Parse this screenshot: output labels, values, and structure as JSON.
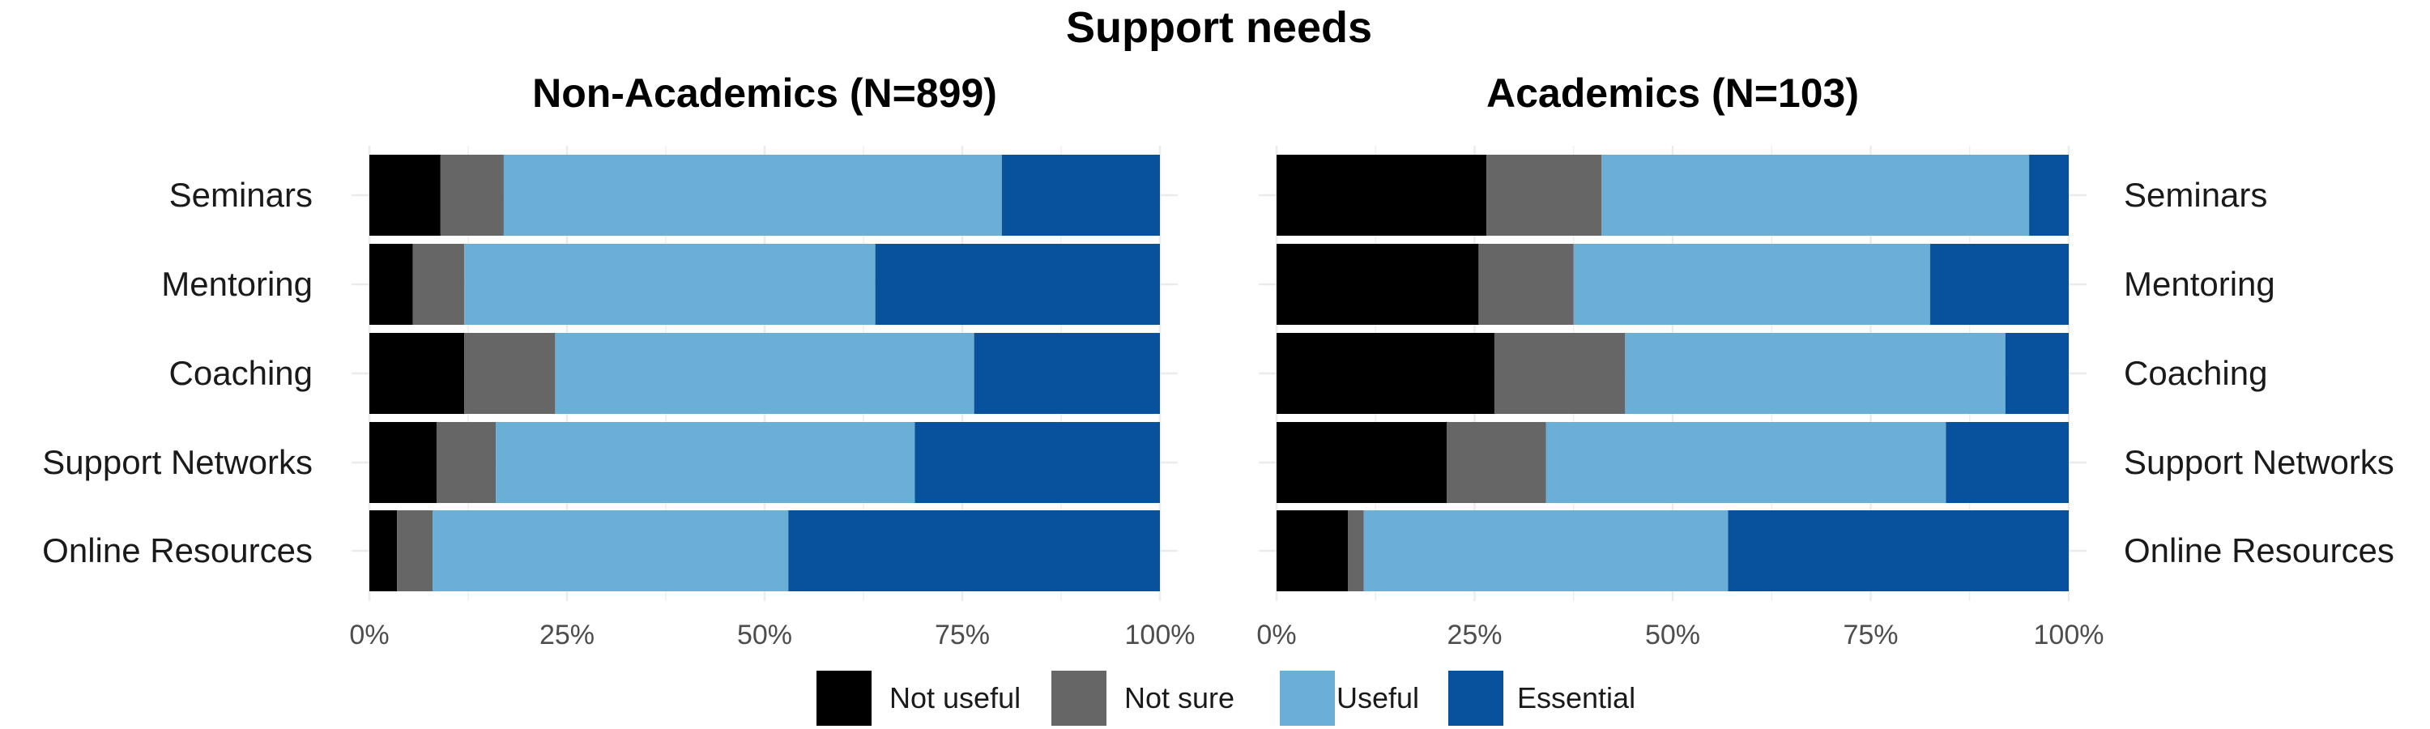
{
  "chart_data": {
    "type": "bar",
    "orientation": "horizontal",
    "stacked": "percent",
    "title": "Support needs",
    "categories": [
      "Seminars",
      "Mentoring",
      "Coaching",
      "Support Networks",
      "Online Resources"
    ],
    "xlim": [
      0,
      100
    ],
    "x_ticks": [
      "0%",
      "25%",
      "50%",
      "75%",
      "100%"
    ],
    "grid": true,
    "legend_position": "bottom",
    "legend": [
      {
        "name": "Not useful",
        "color": "#000000"
      },
      {
        "name": "Not sure",
        "color": "#666666"
      },
      {
        "name": "Useful",
        "color": "#6BAED6"
      },
      {
        "name": "Essential",
        "color": "#08519C"
      }
    ],
    "panels": [
      {
        "title": "Non-Academics (N=899)",
        "category_labels_side": "left",
        "series": [
          {
            "name": "Not useful",
            "values": [
              9,
              5.5,
              12,
              8.5,
              3.5
            ]
          },
          {
            "name": "Not sure",
            "values": [
              8,
              6.5,
              11.5,
              7.5,
              4.5
            ]
          },
          {
            "name": "Useful",
            "values": [
              63,
              52,
              53,
              53,
              45
            ]
          },
          {
            "name": "Essential",
            "values": [
              20,
              36,
              23.5,
              31,
              47
            ]
          }
        ]
      },
      {
        "title": "Academics (N=103)",
        "category_labels_side": "right",
        "series": [
          {
            "name": "Not useful",
            "values": [
              26.5,
              25.5,
              27.5,
              21.5,
              9
            ]
          },
          {
            "name": "Not sure",
            "values": [
              14.5,
              12,
              16.5,
              12.5,
              2
            ]
          },
          {
            "name": "Useful",
            "values": [
              54,
              45,
              48,
              50.5,
              46
            ]
          },
          {
            "name": "Essential",
            "values": [
              5,
              17.5,
              8,
              15.5,
              43
            ]
          }
        ]
      }
    ]
  }
}
